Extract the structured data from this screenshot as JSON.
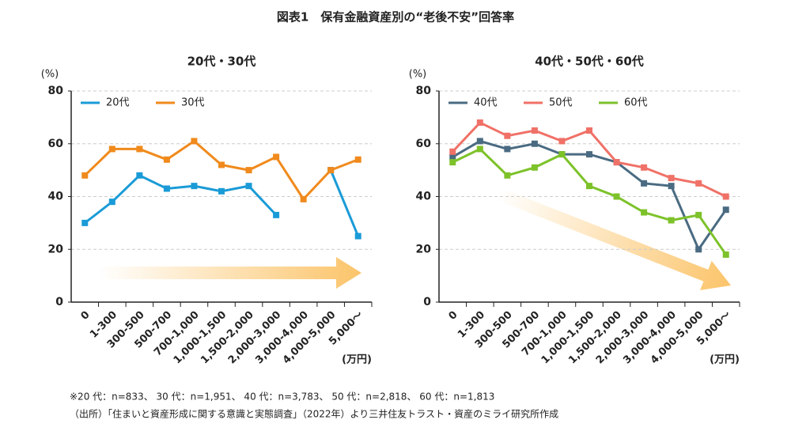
{
  "title": "図表1　保有金融資産別の“老後不安”回答率",
  "chart_data": [
    {
      "type": "line",
      "title": "20代・30代",
      "y_label": "(%)",
      "x_label": "(万円)",
      "categories": [
        "0",
        "1-300",
        "300-500",
        "500-700",
        "700-1,000",
        "1,000-1,500",
        "1,500-2,000",
        "2,000-3,000",
        "3,000-4,000",
        "4,000-5,000",
        "5,000～"
      ],
      "series": [
        {
          "name": "20代",
          "color": "#1a9bd7",
          "values": [
            30,
            38,
            48,
            43,
            44,
            42,
            44,
            33,
            null,
            50,
            25
          ]
        },
        {
          "name": "30代",
          "color": "#f08a1c",
          "values": [
            48,
            58,
            58,
            54,
            61,
            52,
            50,
            55,
            39,
            50,
            54
          ]
        }
      ],
      "ylim": [
        0,
        80
      ],
      "yticks": [
        0,
        20,
        40,
        60,
        80
      ],
      "grid": true,
      "legend": "top-left"
    },
    {
      "type": "line",
      "title": "40代・50代・60代",
      "y_label": "(%)",
      "x_label": "(万円)",
      "categories": [
        "0",
        "1-300",
        "300-500",
        "500-700",
        "700-1,000",
        "1,000-1,500",
        "1,500-2,000",
        "2,000-3,000",
        "3,000-4,000",
        "4,000-5,000",
        "5,000～"
      ],
      "series": [
        {
          "name": "40代",
          "color": "#4a6b82",
          "values": [
            55,
            61,
            58,
            60,
            56,
            56,
            53,
            45,
            44,
            20,
            35
          ]
        },
        {
          "name": "50代",
          "color": "#f07167",
          "values": [
            57,
            68,
            63,
            65,
            61,
            65,
            53,
            51,
            47,
            45,
            40
          ]
        },
        {
          "name": "60代",
          "color": "#7dc22a",
          "values": [
            53,
            58,
            48,
            51,
            56,
            44,
            40,
            34,
            31,
            33,
            18
          ]
        }
      ],
      "ylim": [
        0,
        80
      ],
      "yticks": [
        0,
        20,
        40,
        60,
        80
      ],
      "grid": true,
      "legend": "top-left"
    }
  ],
  "notes": [
    "※20 代：n=833、 30 代：n=1,951、 40 代：n=3,783、 50 代：n=2,818、 60 代：n=1,813",
    "（出所）「住まいと資産形成に関する意識と実態調査」（2022年）より三井住友トラスト・資産のミライ研究所作成"
  ]
}
